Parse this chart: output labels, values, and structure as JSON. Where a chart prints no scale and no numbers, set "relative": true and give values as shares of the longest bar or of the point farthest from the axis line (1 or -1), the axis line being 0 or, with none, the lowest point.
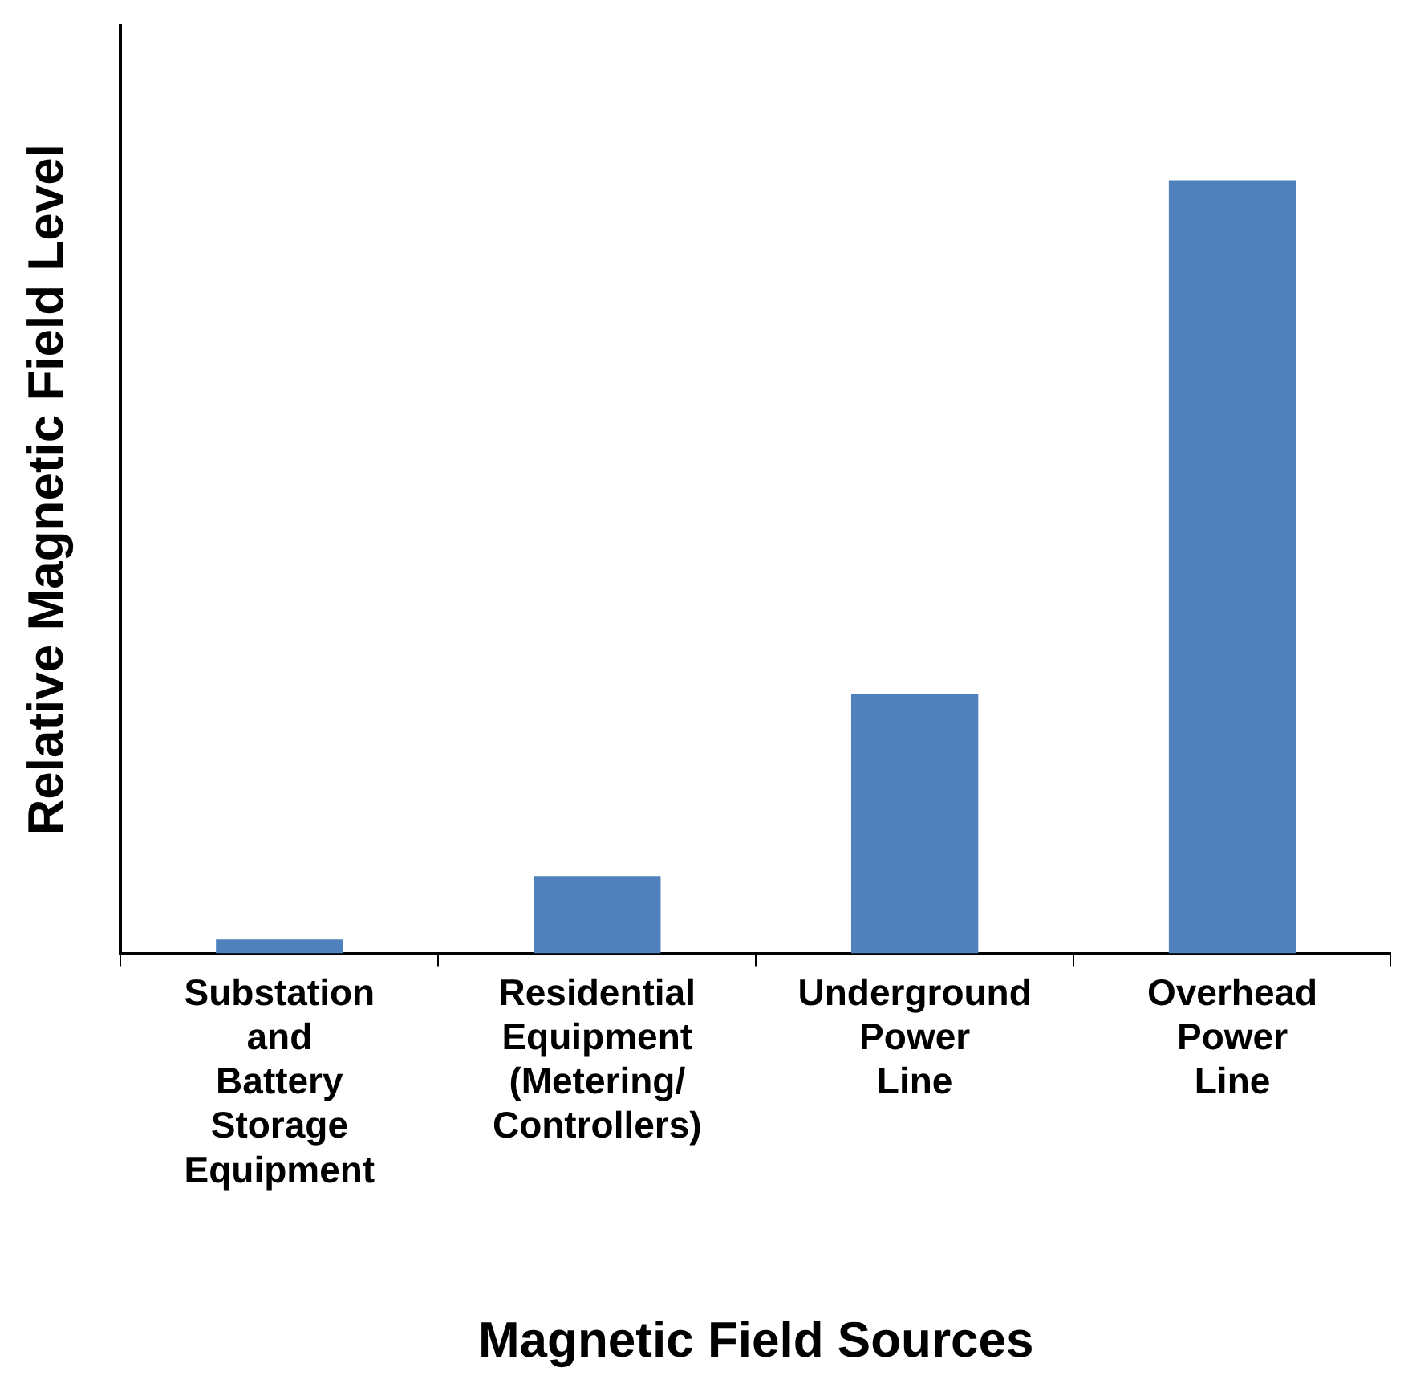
{
  "chart_data": {
    "type": "bar",
    "relative": true,
    "xlabel": "Magnetic Field Sources",
    "ylabel": "Relative Magnetic Field Level",
    "categories": [
      "Substation and Battery Storage Equipment",
      "Residential Equipment (Metering/ Controllers)",
      "Underground Power Line",
      "Overhead Power Line"
    ],
    "values": [
      0.018,
      0.1,
      0.335,
      1
    ],
    "color": "#4f81bd",
    "grid": false,
    "legend": false
  }
}
